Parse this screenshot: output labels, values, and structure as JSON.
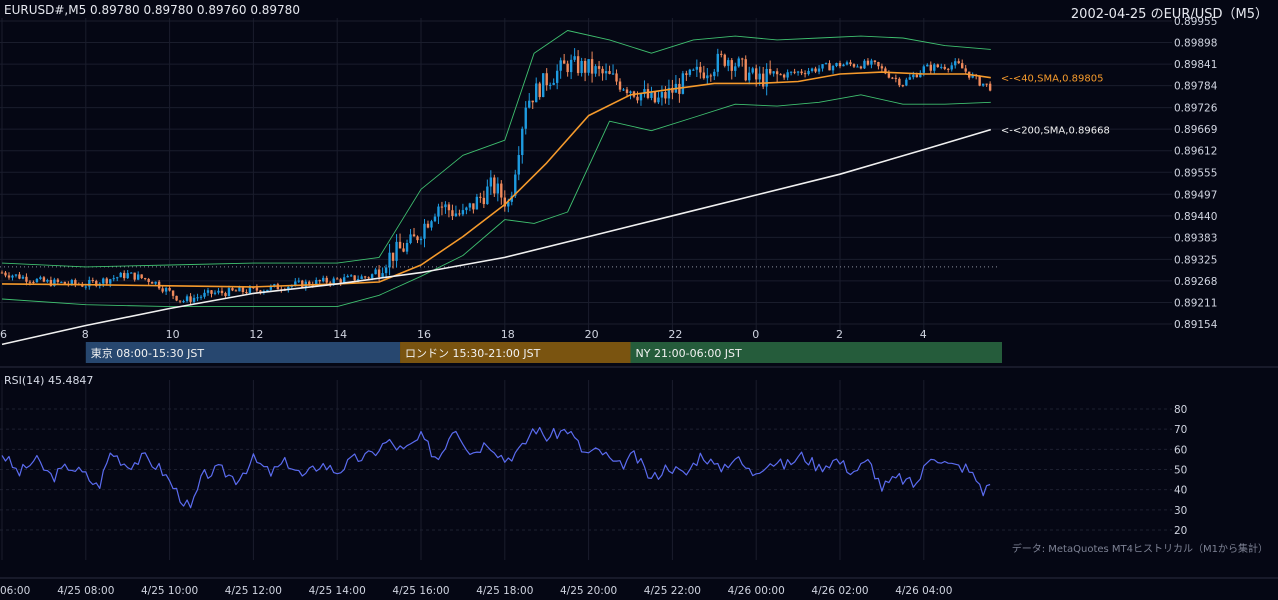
{
  "header": {
    "symbol_ohlc": "EURUSD#,M5 0.89780 0.89780 0.89760 0.89780",
    "right_title": "2002-04-25 のEUR/USD（M5）"
  },
  "rsi_panel": {
    "label": "RSI(14) 45.4847"
  },
  "source_note": "データ: MetaQuotes MT4ヒストリカル（M1から集計）",
  "colors": {
    "background": "#050714",
    "bull_candle": "#1e9be0",
    "bear_candle": "#ef8a5c",
    "sma40": "#f59a2c",
    "sma200": "#f0f0f0",
    "bollinger": "#3fbf6f",
    "rsi": "#5b6cf0",
    "tokyo": "#27476f",
    "london": "#7a5410",
    "ny": "#255c3b",
    "grid": "#1a1d2c"
  },
  "chart_data": [
    {
      "type": "candlestick",
      "title": "EURUSD#,M5",
      "timeframe": "M5",
      "y_ticks": [
        0.89955,
        0.89898,
        0.89841,
        0.89784,
        0.89726,
        0.89669,
        0.89612,
        0.89555,
        0.89497,
        0.8944,
        0.89383,
        0.89325,
        0.89268,
        0.89211,
        0.89154
      ],
      "ylim": [
        0.89154,
        0.89955
      ],
      "x_hour_ticks": [
        "6",
        "8",
        "10",
        "12",
        "14",
        "16",
        "18",
        "20",
        "22",
        "0",
        "2",
        "4"
      ],
      "x_date_ticks": [
        "06:00",
        "4/25 08:00",
        "4/25 10:00",
        "4/25 12:00",
        "4/25 14:00",
        "4/25 16:00",
        "4/25 18:00",
        "4/25 20:00",
        "4/25 22:00",
        "4/26 00:00",
        "4/26 02:00",
        "4/26 04:00"
      ],
      "x_hour_range": [
        6,
        29.7
      ],
      "horizontal_dotted_level": 0.89305,
      "price_path": [
        [
          6.0,
          0.8929
        ],
        [
          7.0,
          0.89265
        ],
        [
          8.0,
          0.89258
        ],
        [
          9.0,
          0.89285
        ],
        [
          9.6,
          0.89268
        ],
        [
          10.3,
          0.89215
        ],
        [
          11.0,
          0.89235
        ],
        [
          12.0,
          0.89243
        ],
        [
          13.0,
          0.89258
        ],
        [
          14.0,
          0.8927
        ],
        [
          14.8,
          0.8928
        ],
        [
          15.2,
          0.8933
        ],
        [
          15.8,
          0.8937
        ],
        [
          16.4,
          0.8947
        ],
        [
          17.0,
          0.8944
        ],
        [
          17.7,
          0.8952
        ],
        [
          18.1,
          0.8947
        ],
        [
          18.5,
          0.8974
        ],
        [
          19.0,
          0.898
        ],
        [
          19.5,
          0.8984
        ],
        [
          20.0,
          0.8983
        ],
        [
          20.8,
          0.8979
        ],
        [
          21.6,
          0.8974
        ],
        [
          22.5,
          0.8981
        ],
        [
          23.3,
          0.8986
        ],
        [
          24.0,
          0.898
        ],
        [
          25.0,
          0.8982
        ],
        [
          26.0,
          0.8984
        ],
        [
          26.8,
          0.8984
        ],
        [
          27.5,
          0.8979
        ],
        [
          28.0,
          0.8983
        ],
        [
          28.8,
          0.8984
        ],
        [
          29.3,
          0.89795
        ],
        [
          29.6,
          0.8978
        ]
      ],
      "overlays": [
        {
          "name": "<-<40,SMA,0.89805",
          "type": "line",
          "points": [
            [
              6,
              0.8926
            ],
            [
              8,
              0.89258
            ],
            [
              10,
              0.89255
            ],
            [
              12,
              0.89252
            ],
            [
              14,
              0.8926
            ],
            [
              15,
              0.89265
            ],
            [
              16,
              0.8931
            ],
            [
              17,
              0.89385
            ],
            [
              18,
              0.8947
            ],
            [
              19,
              0.8958
            ],
            [
              20,
              0.89705
            ],
            [
              21,
              0.8976
            ],
            [
              22,
              0.89775
            ],
            [
              23,
              0.8979
            ],
            [
              24,
              0.8979
            ],
            [
              25,
              0.89795
            ],
            [
              26,
              0.89815
            ],
            [
              27,
              0.8982
            ],
            [
              28,
              0.89815
            ],
            [
              29,
              0.89815
            ],
            [
              29.6,
              0.89805
            ]
          ]
        },
        {
          "name": "<-<200,SMA,0.89668",
          "type": "line",
          "points": [
            [
              6,
              0.891
            ],
            [
              8,
              0.8915
            ],
            [
              10,
              0.89195
            ],
            [
              12,
              0.89235
            ],
            [
              14,
              0.8926
            ],
            [
              16,
              0.8929
            ],
            [
              18,
              0.8933
            ],
            [
              20,
              0.89385
            ],
            [
              22,
              0.8944
            ],
            [
              24,
              0.89495
            ],
            [
              26,
              0.8955
            ],
            [
              28,
              0.89615
            ],
            [
              29.6,
              0.89668
            ]
          ]
        }
      ],
      "bollinger_upper": [
        [
          6,
          0.89315
        ],
        [
          8,
          0.89305
        ],
        [
          10,
          0.8931
        ],
        [
          12,
          0.89315
        ],
        [
          14,
          0.89315
        ],
        [
          15,
          0.8933
        ],
        [
          16,
          0.8951
        ],
        [
          17,
          0.896
        ],
        [
          18,
          0.8964
        ],
        [
          18.7,
          0.8987
        ],
        [
          19.5,
          0.8993
        ],
        [
          20.5,
          0.89905
        ],
        [
          21.5,
          0.8987
        ],
        [
          22.5,
          0.89905
        ],
        [
          23.5,
          0.89915
        ],
        [
          24.5,
          0.89905
        ],
        [
          25.5,
          0.8991
        ],
        [
          26.5,
          0.89915
        ],
        [
          27.5,
          0.8991
        ],
        [
          28.5,
          0.8989
        ],
        [
          29.6,
          0.8988
        ]
      ],
      "bollinger_lower": [
        [
          6,
          0.8922
        ],
        [
          8,
          0.89205
        ],
        [
          10,
          0.892
        ],
        [
          12,
          0.892
        ],
        [
          14,
          0.892
        ],
        [
          15,
          0.8923
        ],
        [
          16,
          0.8928
        ],
        [
          17,
          0.89335
        ],
        [
          18,
          0.8943
        ],
        [
          18.7,
          0.8942
        ],
        [
          19.5,
          0.8945
        ],
        [
          20.5,
          0.8969
        ],
        [
          21.5,
          0.89665
        ],
        [
          22.5,
          0.897
        ],
        [
          23.5,
          0.89735
        ],
        [
          24.5,
          0.8973
        ],
        [
          25.5,
          0.8974
        ],
        [
          26.5,
          0.8976
        ],
        [
          27.5,
          0.89735
        ],
        [
          28.5,
          0.89735
        ],
        [
          29.6,
          0.8974
        ]
      ]
    },
    {
      "type": "line",
      "title": "RSI(14) 45.4847",
      "y_ticks": [
        80,
        70,
        60,
        50,
        40,
        30,
        20
      ],
      "ylim": [
        20,
        80
      ],
      "points": [
        [
          6.0,
          58
        ],
        [
          6.4,
          48
        ],
        [
          6.8,
          55
        ],
        [
          7.2,
          46
        ],
        [
          7.6,
          52
        ],
        [
          8.0,
          47
        ],
        [
          8.3,
          41
        ],
        [
          8.6,
          59
        ],
        [
          9.0,
          52
        ],
        [
          9.4,
          56
        ],
        [
          9.8,
          50
        ],
        [
          10.2,
          38
        ],
        [
          10.5,
          30
        ],
        [
          10.8,
          47
        ],
        [
          11.2,
          50
        ],
        [
          11.6,
          45
        ],
        [
          12.0,
          55
        ],
        [
          12.4,
          48
        ],
        [
          12.8,
          54
        ],
        [
          13.2,
          46
        ],
        [
          13.6,
          53
        ],
        [
          14.0,
          49
        ],
        [
          14.4,
          55
        ],
        [
          14.8,
          57
        ],
        [
          15.2,
          64
        ],
        [
          15.6,
          59
        ],
        [
          16.0,
          66
        ],
        [
          16.4,
          55
        ],
        [
          16.8,
          72
        ],
        [
          17.2,
          58
        ],
        [
          17.6,
          64
        ],
        [
          18.0,
          55
        ],
        [
          18.4,
          60
        ],
        [
          18.7,
          71
        ],
        [
          19.0,
          66
        ],
        [
          19.5,
          70
        ],
        [
          19.9,
          58
        ],
        [
          20.3,
          59
        ],
        [
          20.7,
          51
        ],
        [
          21.1,
          57
        ],
        [
          21.5,
          45
        ],
        [
          21.9,
          52
        ],
        [
          22.3,
          47
        ],
        [
          22.7,
          58
        ],
        [
          23.1,
          50
        ],
        [
          23.5,
          56
        ],
        [
          23.9,
          48
        ],
        [
          24.3,
          54
        ],
        [
          24.7,
          52
        ],
        [
          25.1,
          57
        ],
        [
          25.5,
          51
        ],
        [
          25.9,
          55
        ],
        [
          26.3,
          49
        ],
        [
          26.7,
          54
        ],
        [
          27.0,
          41
        ],
        [
          27.4,
          46
        ],
        [
          27.8,
          42
        ],
        [
          28.2,
          58
        ],
        [
          28.6,
          52
        ],
        [
          29.0,
          51
        ],
        [
          29.3,
          44
        ],
        [
          29.45,
          38
        ],
        [
          29.6,
          45
        ]
      ]
    }
  ],
  "sessions": [
    {
      "label": "東京 08:00-15:30 JST",
      "start_hour": 8.0,
      "end_hour": 15.5
    },
    {
      "label": "ロンドン 15:30-21:00 JST",
      "start_hour": 15.5,
      "end_hour": 21.0
    },
    {
      "label": "NY 21:00-06:00 JST",
      "start_hour": 21.0,
      "end_hour": 29.9
    }
  ]
}
